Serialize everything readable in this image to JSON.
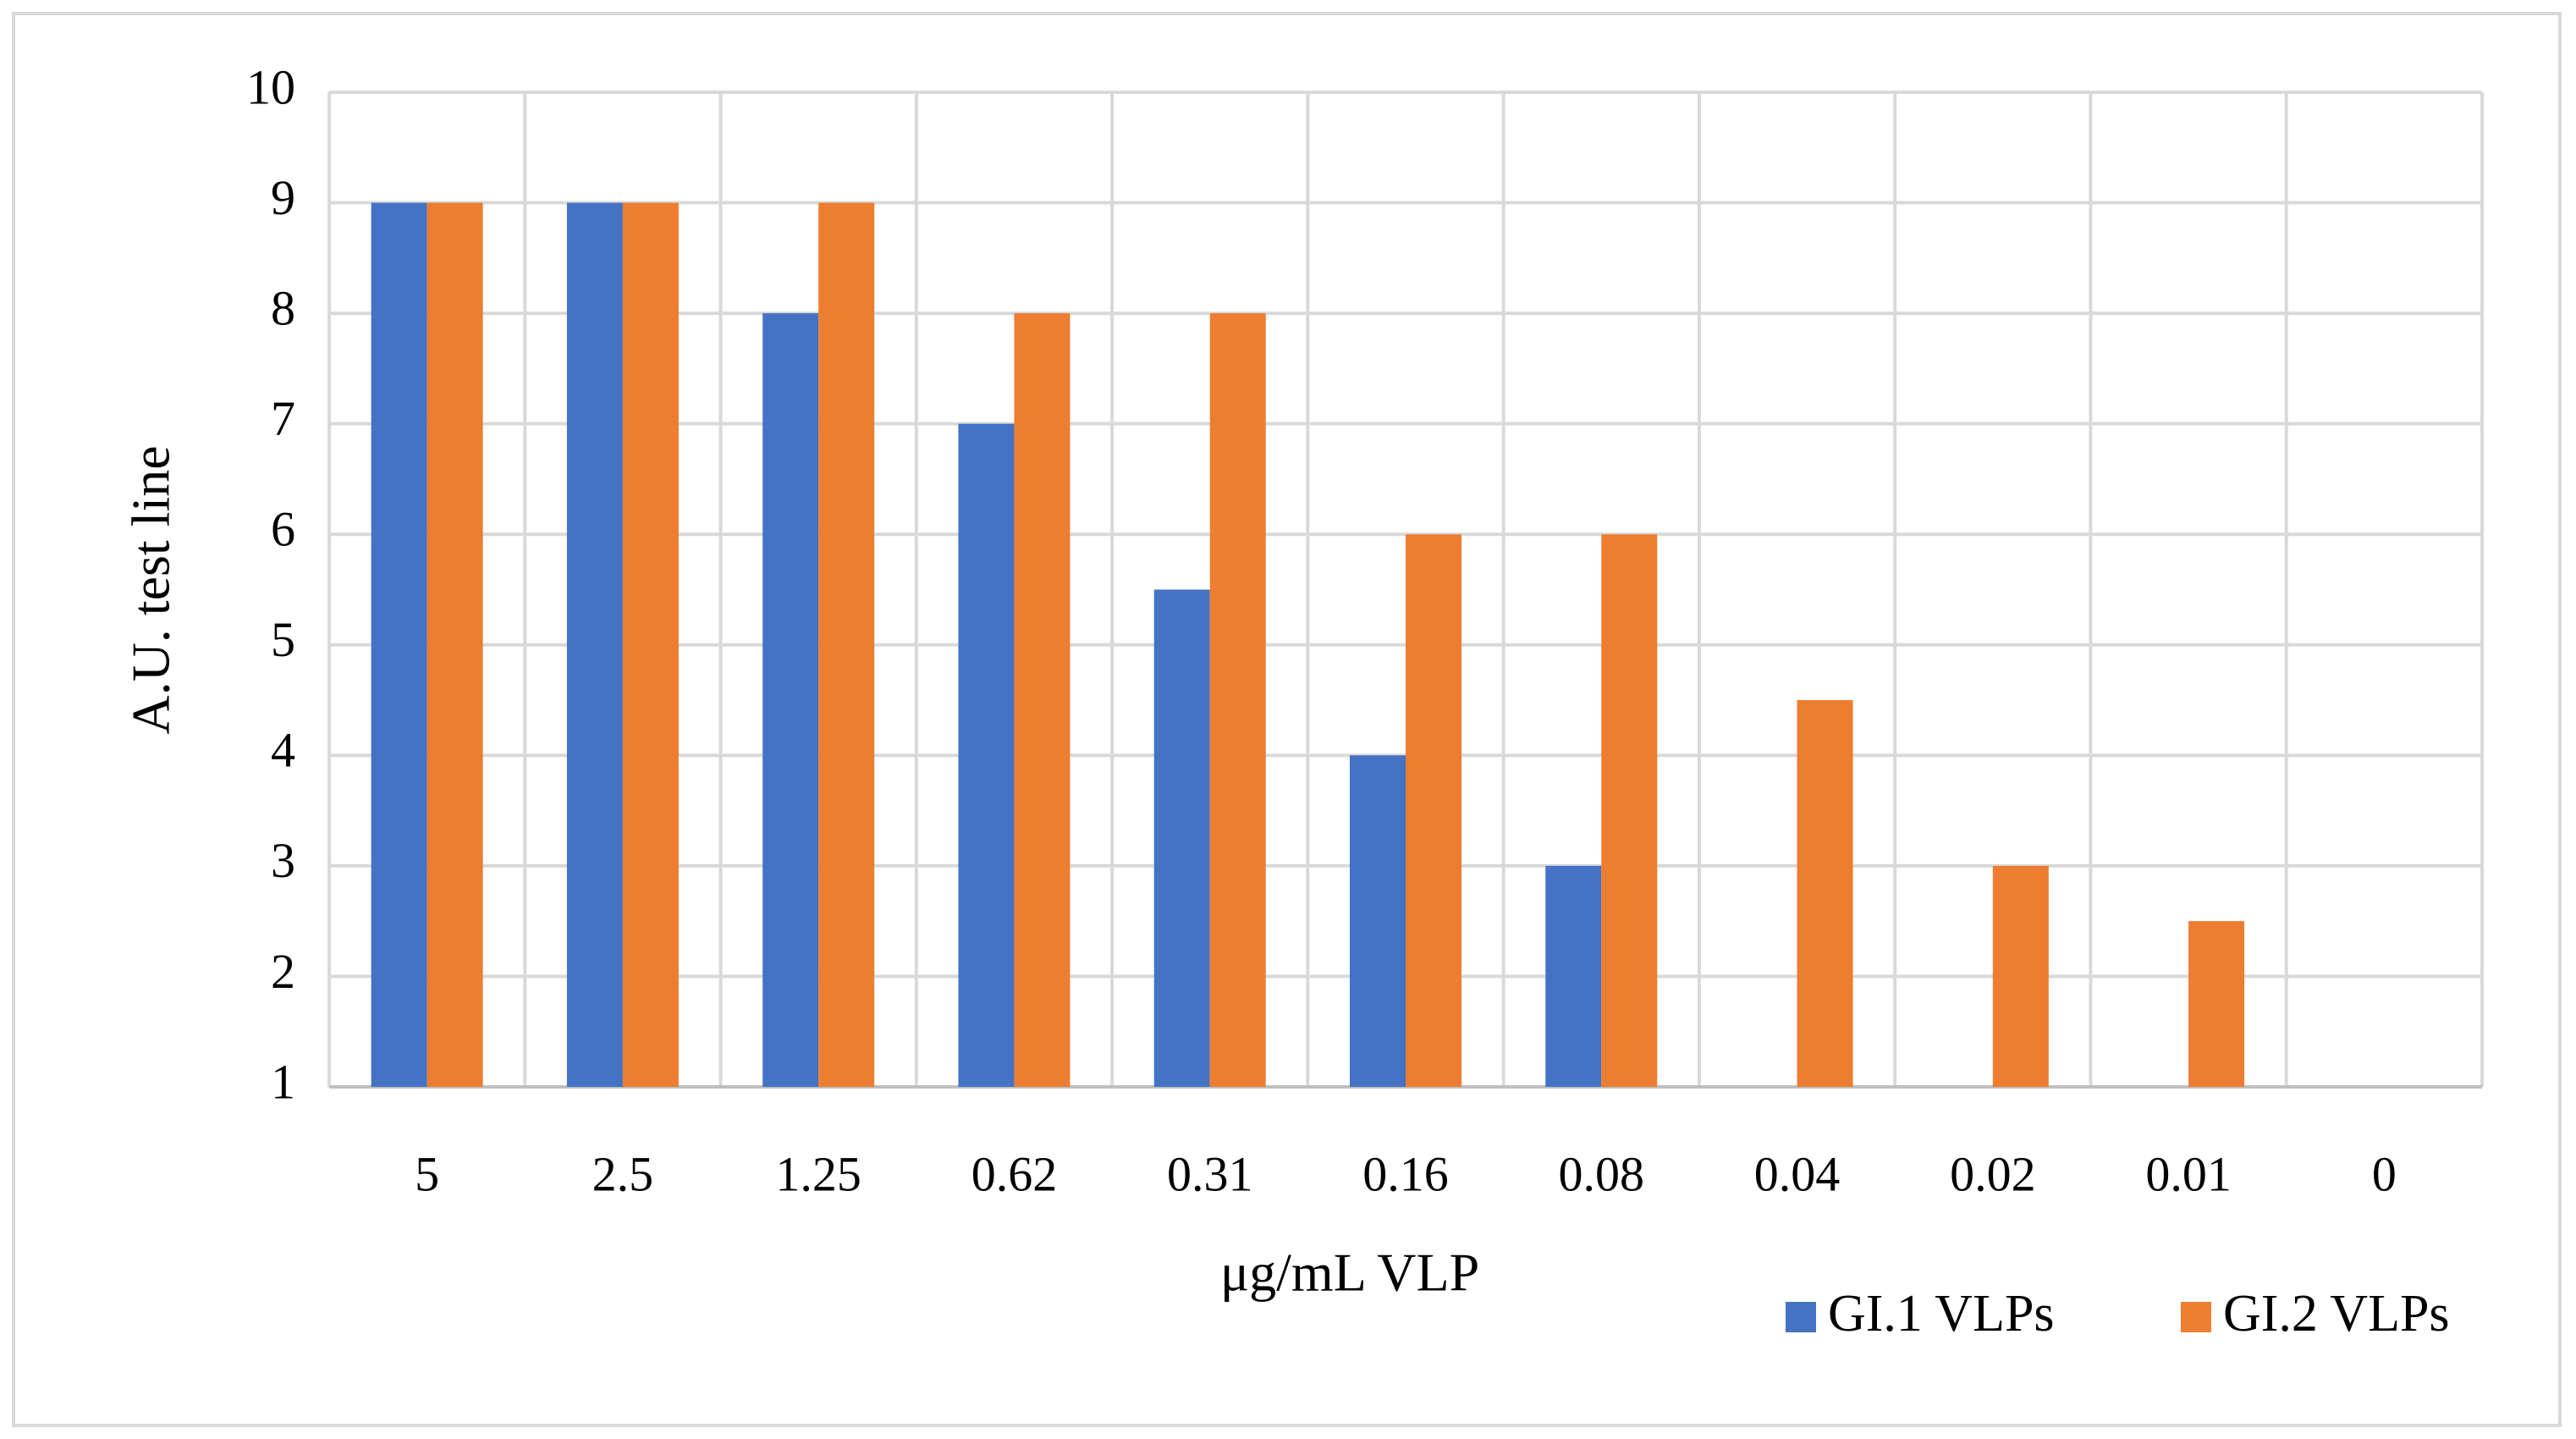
{
  "chart_data": {
    "type": "bar",
    "x_label": "μg/mL VLP",
    "y_label": "A.U. test line",
    "categories": [
      "5",
      "2.5",
      "1.25",
      "0.62",
      "0.31",
      "0.16",
      "0.08",
      "0.04",
      "0.02",
      "0.01",
      "0"
    ],
    "series": [
      {
        "name": "GI.1 VLPs",
        "color": "#4472c4",
        "values": [
          9,
          9,
          8,
          7,
          5.5,
          4,
          3,
          1,
          1,
          1,
          1
        ]
      },
      {
        "name": "GI.2 VLPs",
        "color": "#ed7d31",
        "values": [
          9,
          9,
          9,
          8,
          8,
          6,
          6,
          4.5,
          3,
          2.5,
          1
        ]
      }
    ],
    "ylim": [
      1,
      10
    ],
    "yticks": [
      1,
      2,
      3,
      4,
      5,
      6,
      7,
      8,
      9,
      10
    ],
    "grid": true,
    "legend": "bottom-right"
  }
}
